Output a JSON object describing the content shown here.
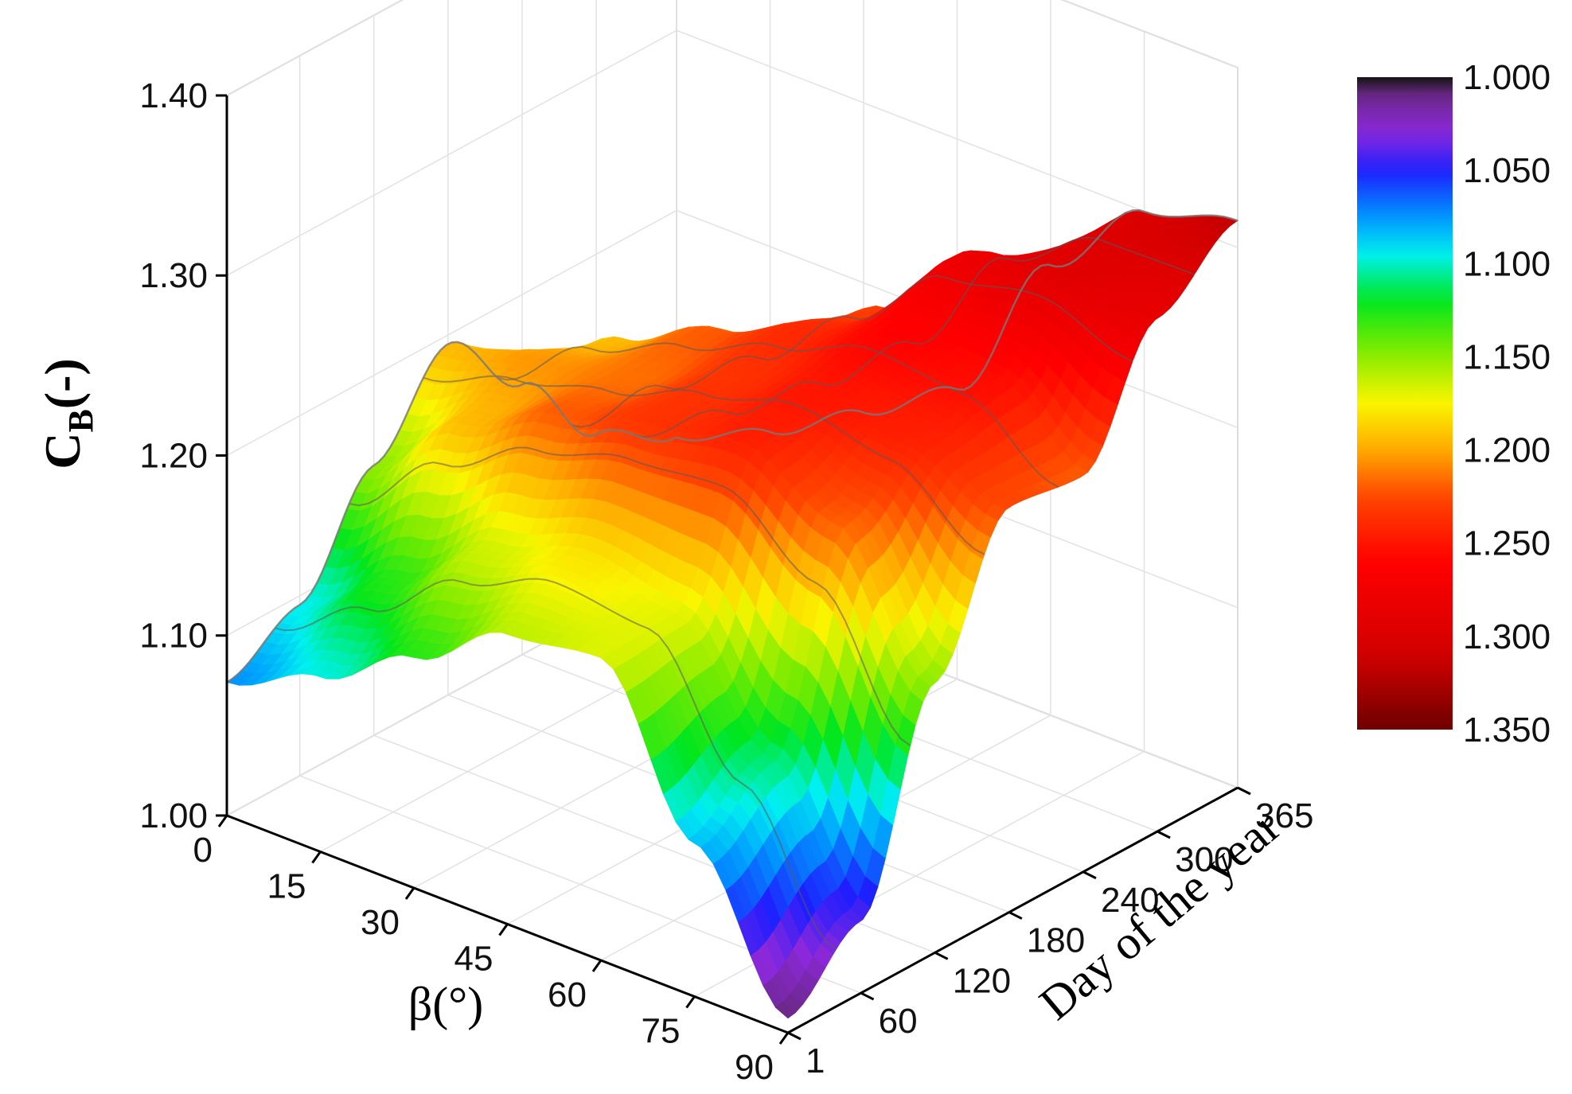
{
  "chart_data": {
    "type": "surface3d",
    "title": "",
    "xlabel": "β(°)",
    "ylabel": "Day of the year",
    "zlabel_main": "C",
    "zlabel_sub": "B",
    "zlabel_suffix": "(-)",
    "x_ticks": [
      0,
      15,
      30,
      45,
      60,
      75,
      90
    ],
    "x_tick_labels": [
      "0",
      "15",
      "30",
      "45",
      "60",
      "75",
      "90"
    ],
    "y_ticks": [
      1,
      60,
      120,
      180,
      240,
      300,
      365
    ],
    "y_tick_labels": [
      "1",
      "60",
      "120",
      "180",
      "240",
      "300",
      "365"
    ],
    "z_ticks": [
      1.0,
      1.1,
      1.2,
      1.3,
      1.4
    ],
    "z_tick_labels": [
      "1.00",
      "1.10",
      "1.20",
      "1.30",
      "1.40"
    ],
    "xlim": [
      0,
      90
    ],
    "ylim": [
      1,
      365
    ],
    "zlim": [
      1.0,
      1.4
    ],
    "grid": true,
    "colorbar": {
      "placement": "right",
      "range": [
        1.0,
        1.35
      ],
      "tick_values": [
        1.0,
        1.05,
        1.1,
        1.15,
        1.2,
        1.25,
        1.3,
        1.35
      ],
      "tick_labels": [
        "1.000",
        "1.050",
        "1.100",
        "1.150",
        "1.200",
        "1.250",
        "1.300",
        "1.350"
      ],
      "colors": [
        "#111111",
        "#7a2ea0",
        "#8a2be2",
        "#0000ff",
        "#00a0ff",
        "#00ffff",
        "#00ff00",
        "#80ff00",
        "#ffff00",
        "#ffc000",
        "#ff7000",
        "#ff0000",
        "#cc0000",
        "#660000"
      ]
    },
    "series": [
      {
        "x": [
          0,
          15,
          30,
          45,
          60,
          75,
          90
        ],
        "y_day_1": [
          1.074,
          1.097,
          1.128,
          1.161,
          1.168,
          1.085,
          1.008
        ],
        "y_day_60": [
          1.095,
          1.128,
          1.165,
          1.18,
          1.17,
          1.11,
          1.04
        ],
        "y_day_120": [
          1.15,
          1.195,
          1.22,
          1.235,
          1.245,
          1.22,
          1.15
        ],
        "y_day_180": [
          1.195,
          1.205,
          1.215,
          1.235,
          1.25,
          1.245,
          1.225
        ],
        "y_day_240": [
          1.15,
          1.195,
          1.22,
          1.24,
          1.26,
          1.255,
          1.22
        ],
        "y_day_300": [
          1.1,
          1.14,
          1.18,
          1.23,
          1.28,
          1.295,
          1.285
        ],
        "y_day_365": [
          1.074,
          1.097,
          1.128,
          1.161,
          1.25,
          1.3,
          1.315
        ]
      }
    ]
  }
}
